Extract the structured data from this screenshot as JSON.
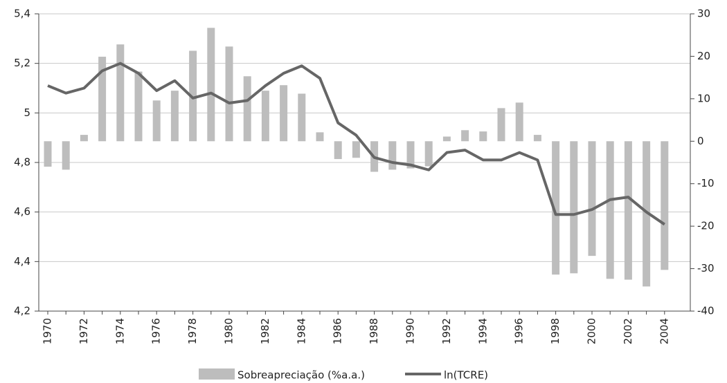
{
  "chart_data": {
    "type": "combo",
    "categories": [
      "1970",
      null,
      "1972",
      null,
      "1974",
      null,
      "1976",
      null,
      "1978",
      null,
      "1980",
      null,
      "1982",
      null,
      "1984",
      null,
      "1986",
      null,
      "1988",
      null,
      "1990",
      null,
      "1992",
      null,
      "1994",
      null,
      "1996",
      null,
      "1998",
      null,
      "2000",
      null,
      "2002",
      null,
      "2004"
    ],
    "series": [
      {
        "name": "Sobreapreciação (%a.a.)",
        "type": "bar",
        "axis": "y2",
        "color": "#bdbdbd",
        "values": [
          -6.0,
          -6.7,
          1.5,
          19.9,
          22.8,
          16.4,
          9.6,
          11.9,
          21.3,
          26.7,
          22.3,
          15.3,
          11.9,
          13.2,
          11.2,
          2.1,
          -4.2,
          -3.9,
          -7.2,
          -6.7,
          -6.4,
          -5.9,
          1.1,
          2.6,
          2.3,
          7.8,
          9.1,
          1.5,
          -31.4,
          -31.1,
          -27.0,
          -32.4,
          -32.6,
          -34.2,
          -30.3
        ]
      },
      {
        "name": "ln(TCRE)",
        "type": "line",
        "axis": "y",
        "color": "#666666",
        "values": [
          5.11,
          5.08,
          5.1,
          5.17,
          5.2,
          5.16,
          5.09,
          5.13,
          5.06,
          5.08,
          5.04,
          5.05,
          5.11,
          5.16,
          5.19,
          5.14,
          4.96,
          4.91,
          4.82,
          4.8,
          4.79,
          4.77,
          4.84,
          4.85,
          4.81,
          4.81,
          4.84,
          4.81,
          4.59,
          4.59,
          4.61,
          4.65,
          4.66,
          4.6,
          4.55
        ]
      }
    ],
    "ylim": [
      4.2,
      5.4
    ],
    "yticks": [
      {
        "value": 4.2,
        "label": "4,2"
      },
      {
        "value": 4.4,
        "label": "4,4"
      },
      {
        "value": 4.6,
        "label": "4,6"
      },
      {
        "value": 4.8,
        "label": "4,8"
      },
      5,
      {
        "value": 5.2,
        "label": "5,2"
      },
      {
        "value": 5.4,
        "label": "5,4"
      }
    ],
    "y2lim": [
      -40,
      30
    ],
    "y2ticks": [
      -40,
      -30,
      -20,
      -10,
      0,
      10,
      20,
      30
    ],
    "grid": true,
    "legend": "bottom"
  }
}
